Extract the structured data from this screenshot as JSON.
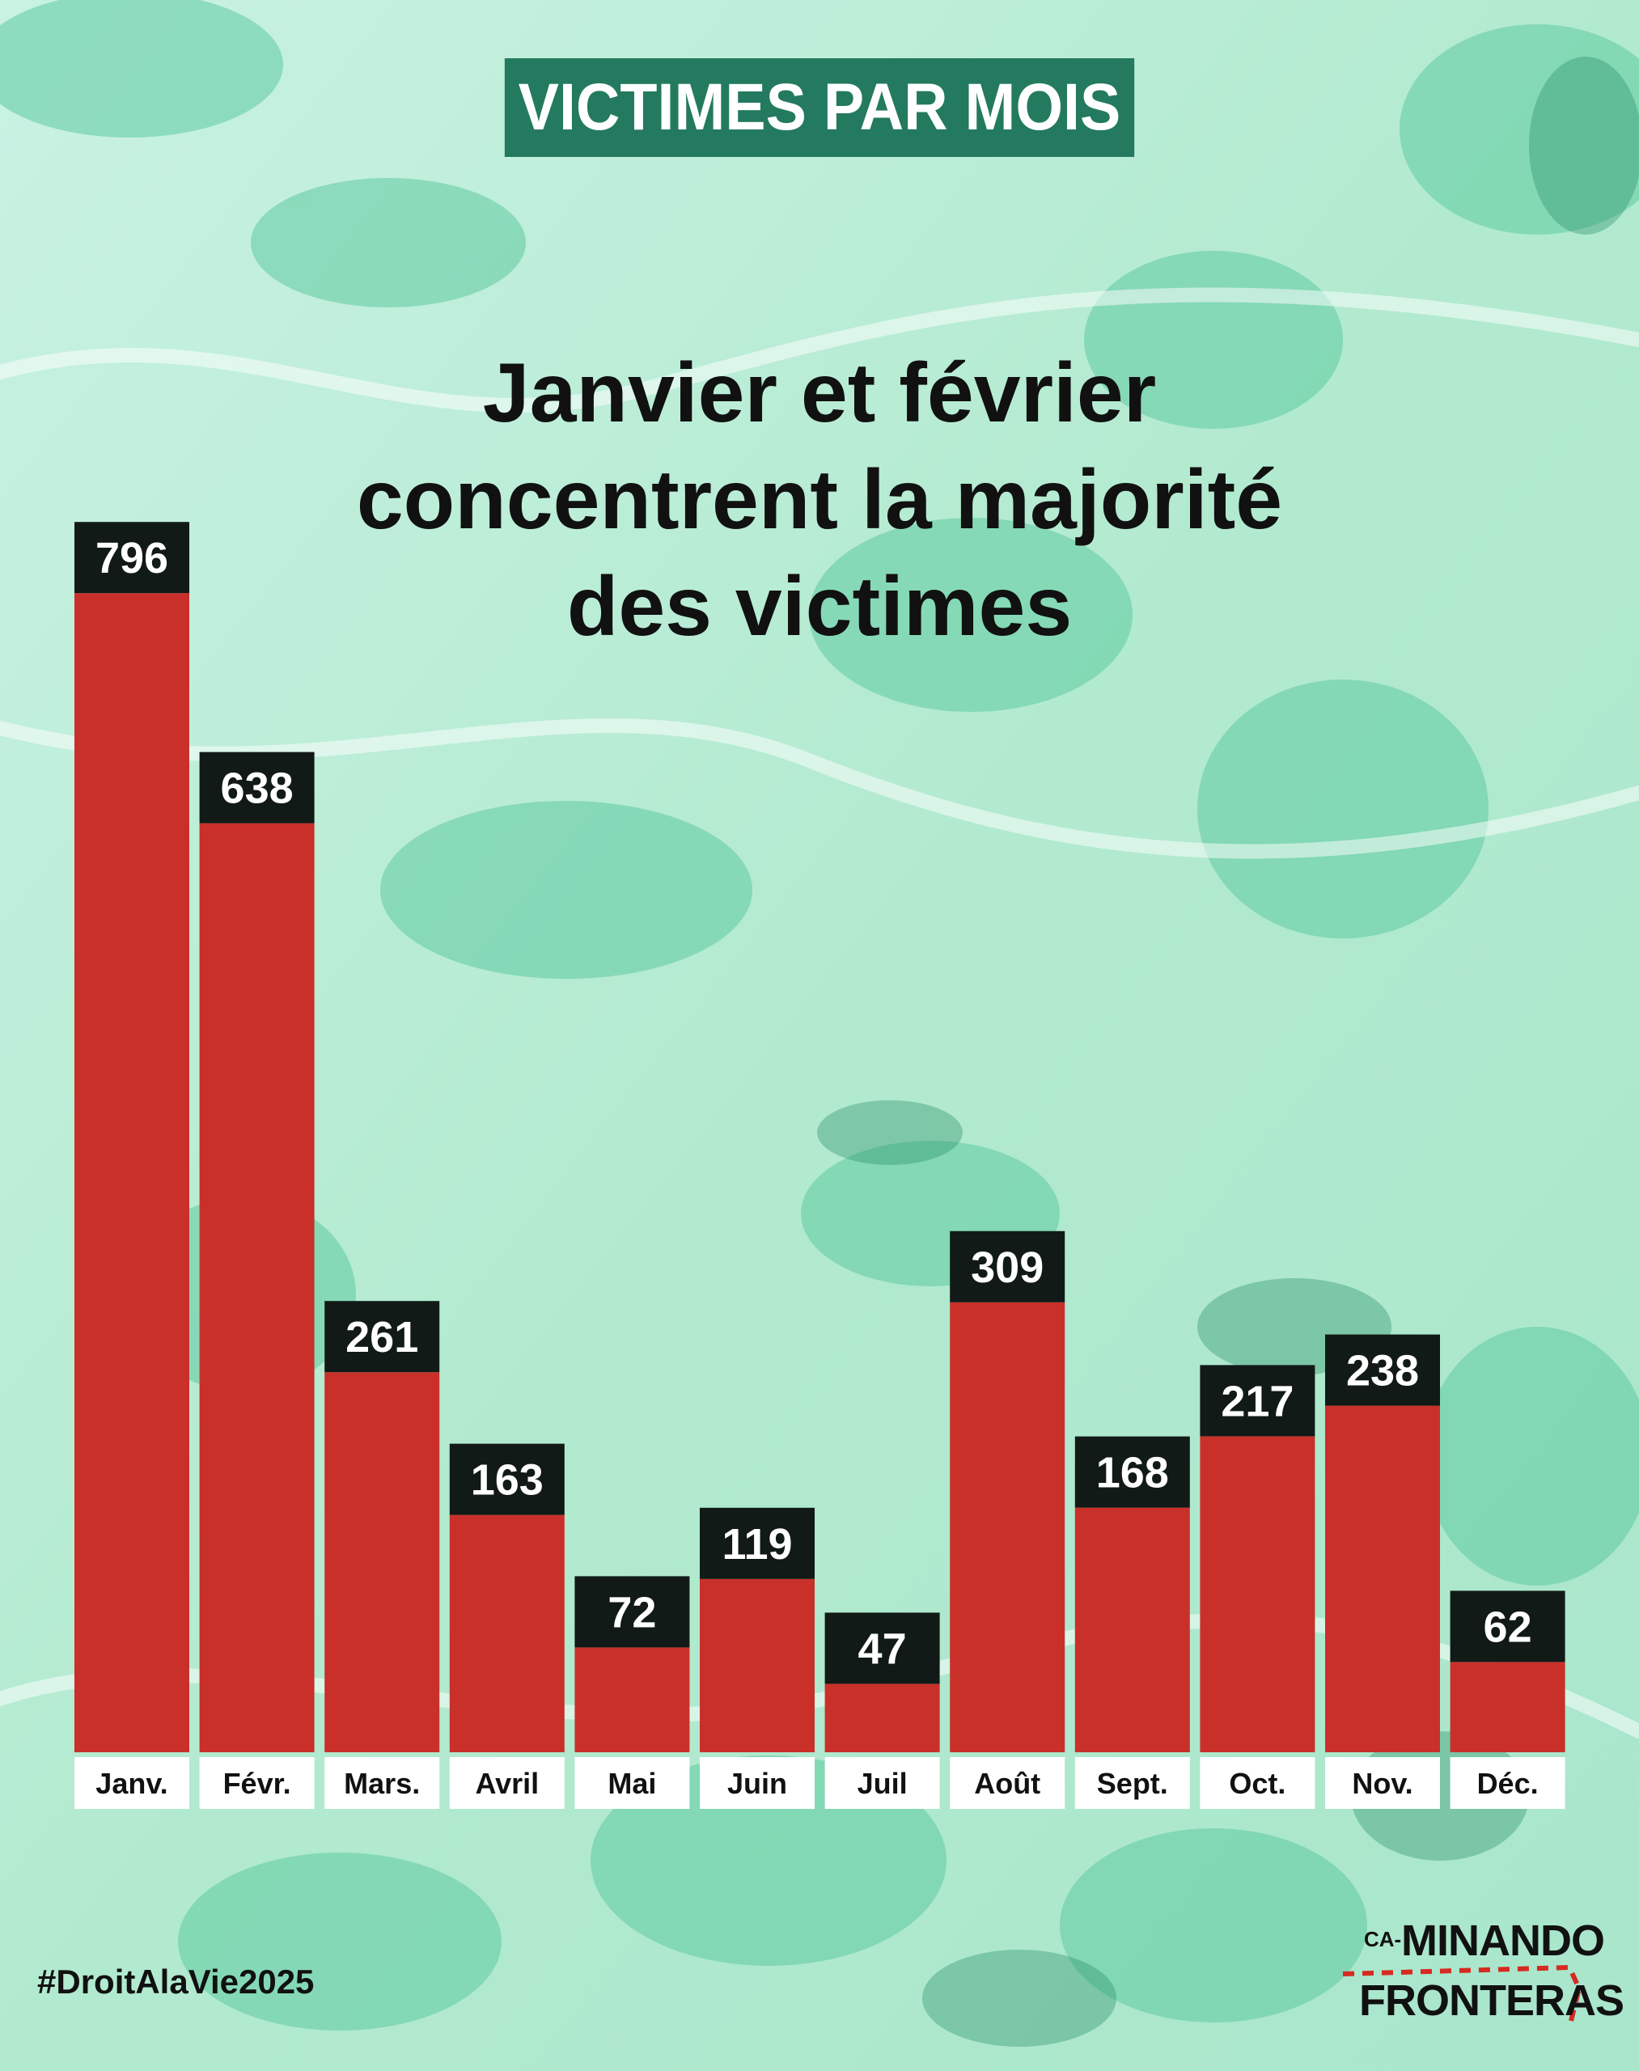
{
  "header": {
    "label": "VICTIMES PAR MOIS"
  },
  "headline": {
    "line1": "Janvier et février",
    "line2": "concentrent la majorité",
    "line3": "des victimes"
  },
  "colors": {
    "bar": "#c9302a",
    "value_box": "#111a17",
    "label_box": "#ffffff",
    "header_box": "#237a5f",
    "background": "#bfeedd"
  },
  "chart_data": {
    "type": "bar",
    "categories": [
      "Janv.",
      "Févr.",
      "Mars.",
      "Avril",
      "Mai",
      "Juin",
      "Juil",
      "Août",
      "Sept.",
      "Oct.",
      "Nov.",
      "Déc."
    ],
    "values": [
      796,
      638,
      261,
      163,
      72,
      119,
      47,
      309,
      168,
      217,
      238,
      62
    ],
    "title": "VICTIMES PAR MOIS",
    "subtitle": "Janvier et février concentrent la majorité des victimes",
    "xlabel": "",
    "ylabel": "",
    "grid": false,
    "legend": "none"
  },
  "footer": {
    "hashtag": "#DroitAlaVie2025",
    "logo_small": "CA-",
    "logo_line1": "MINANDO",
    "logo_line2": "FRONTERAS"
  }
}
